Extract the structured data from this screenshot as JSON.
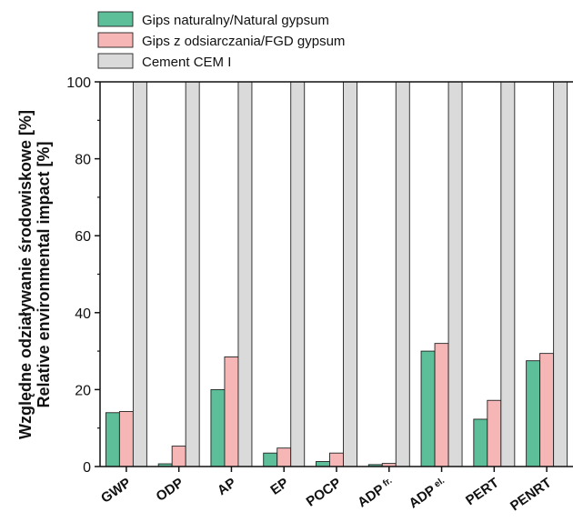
{
  "chart_data": {
    "type": "bar",
    "categories": [
      {
        "main": "GWP",
        "sub": ""
      },
      {
        "main": "ODP",
        "sub": ""
      },
      {
        "main": "AP",
        "sub": ""
      },
      {
        "main": "EP",
        "sub": ""
      },
      {
        "main": "POCP",
        "sub": ""
      },
      {
        "main": "ADP",
        "sub": "fr."
      },
      {
        "main": "ADP",
        "sub": "el."
      },
      {
        "main": "PERT",
        "sub": ""
      },
      {
        "main": "PENRT",
        "sub": ""
      }
    ],
    "series": [
      {
        "name": "Gips naturalny/Natural gypsum",
        "color": "#5cbf9a",
        "values": [
          14.0,
          0.7,
          20.0,
          3.5,
          1.3,
          0.5,
          30.0,
          12.3,
          27.5
        ]
      },
      {
        "name": "Gips z odsiarczania/FGD gypsum",
        "color": "#f7b6b6",
        "values": [
          14.3,
          5.3,
          28.5,
          4.8,
          3.5,
          0.8,
          32.0,
          17.2,
          29.4
        ]
      },
      {
        "name": "Cement CEM I",
        "color": "#dadada",
        "values": [
          100,
          100,
          100,
          100,
          100,
          100,
          100,
          100,
          100
        ]
      }
    ],
    "ylabel_line1": "Względne odziaływanie środowiskowe [%]",
    "ylabel_line2": "Relative environmental impact [%]",
    "ylim": [
      0,
      100
    ],
    "yticks": [
      0,
      20,
      40,
      60,
      80,
      100
    ],
    "legend_position": "top-left",
    "grid": false
  }
}
